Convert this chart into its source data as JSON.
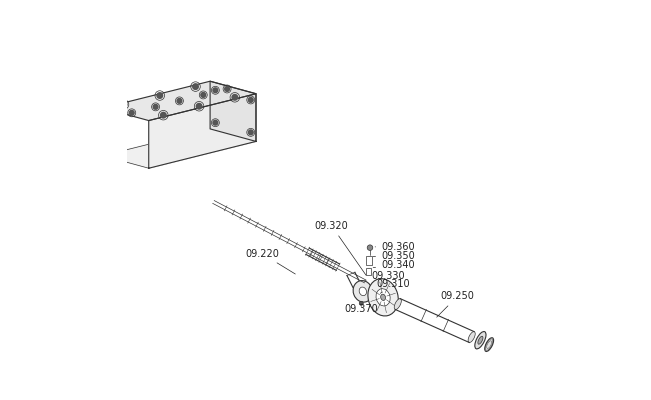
{
  "title": "",
  "background_color": "#ffffff",
  "line_color": "#333333",
  "label_color": "#222222",
  "label_fontsize": 7,
  "fig_width": 6.51,
  "fig_height": 4.0,
  "dpi": 100
}
